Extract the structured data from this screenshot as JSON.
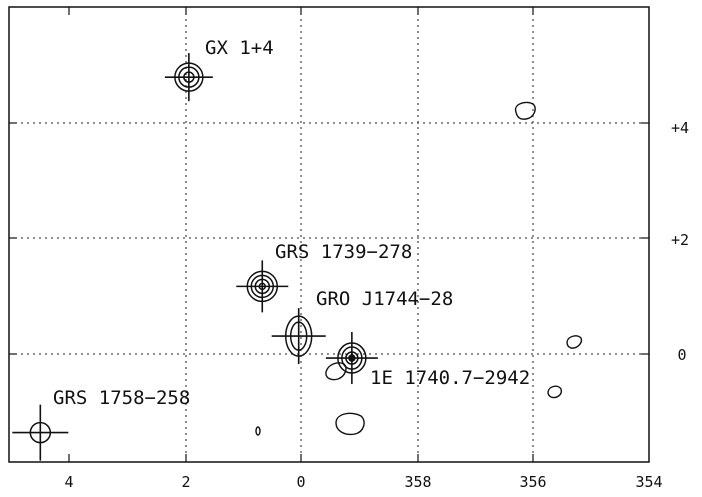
{
  "chart_data": {
    "type": "scatter",
    "x_ticks": [
      "4",
      "2",
      "0",
      "358",
      "356",
      "354"
    ],
    "y_ticks": [
      "+4",
      "+2",
      "0"
    ],
    "grid": true,
    "sources": [
      {
        "name": "GX 1+4",
        "l": 1.94,
        "b": 4.79
      },
      {
        "name": "GRS 1739−278",
        "l": 0.67,
        "b": 1.17
      },
      {
        "name": "GRO J1744−28",
        "l": 0.04,
        "b": 0.31
      },
      {
        "name": "1E 1740.7−2942",
        "l": 359.12,
        "b": -0.07
      },
      {
        "name": "GRS 1758−258",
        "l": 4.51,
        "b": -1.36
      }
    ]
  }
}
